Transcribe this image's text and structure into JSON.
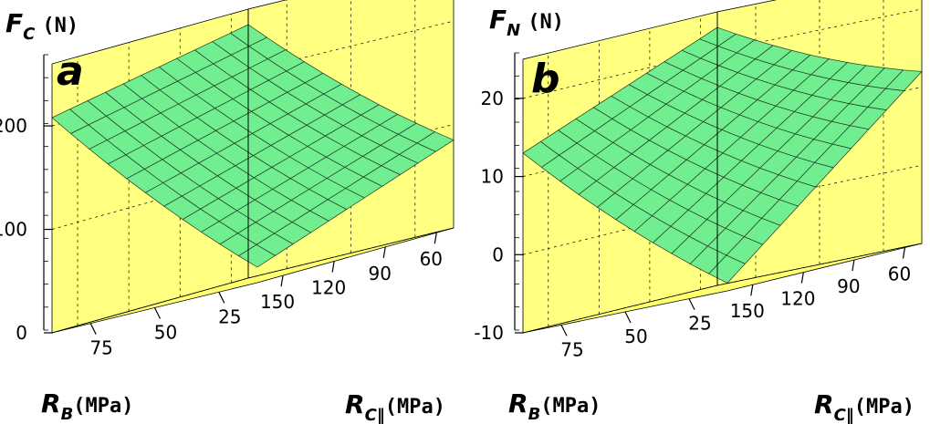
{
  "colors": {
    "wall": "#ffff80",
    "floor": "#ffff70",
    "surface": "#70ee90",
    "mesh": "#1f3a1f",
    "grid": "#000000"
  },
  "chart_data": [
    {
      "type": "surface3d",
      "panel_label": "a",
      "z_axis": {
        "symbol": "F",
        "subscript": "C",
        "unit": "(N)",
        "ticks": [
          "0",
          "100",
          "200"
        ],
        "range": [
          0,
          260
        ]
      },
      "x_axis": {
        "symbol": "R",
        "subscript": "B",
        "unit": "(MPa)",
        "ticks": [
          "60",
          "90",
          "120",
          "150"
        ],
        "range": [
          50,
          165
        ]
      },
      "y_axis": {
        "symbol": "R",
        "subscript": "C‖",
        "unit": "(MPa)",
        "ticks": [
          "25",
          "50",
          "75"
        ],
        "range": [
          10,
          90
        ]
      },
      "corner_values": {
        "rb_min_rc_min": 245,
        "rb_max_rc_min": 208,
        "rb_min_rc_max": 85,
        "rb_max_rc_max": 15
      }
    },
    {
      "type": "surface3d",
      "panel_label": "b",
      "z_axis": {
        "symbol": "F",
        "subscript": "N",
        "unit": "(N)",
        "ticks": [
          "-10",
          "0",
          "10",
          "20"
        ],
        "range": [
          -10,
          25
        ]
      },
      "x_axis": {
        "symbol": "R",
        "subscript": "B",
        "unit": "(MPa)",
        "ticks": [
          "60",
          "90",
          "120",
          "150"
        ],
        "range": [
          50,
          165
        ]
      },
      "y_axis": {
        "symbol": "R",
        "subscript": "C‖",
        "unit": "(MPa)",
        "ticks": [
          "25",
          "50",
          "75"
        ],
        "range": [
          10,
          90
        ]
      },
      "corner_values": {
        "rb_min_rc_min": 23,
        "rb_max_rc_min": 13,
        "rb_min_rc_max": 12,
        "rb_max_rc_max": -9
      }
    }
  ]
}
